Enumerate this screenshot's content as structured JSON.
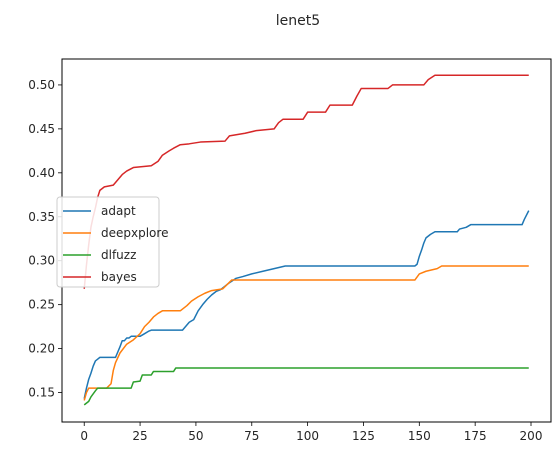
{
  "chart_data": {
    "type": "line",
    "title": "lenet5",
    "xlabel": "",
    "ylabel": "",
    "xlim": [
      -9.95,
      208.95
    ],
    "ylim": [
      0.1165,
      0.5295
    ],
    "xticks": [
      0,
      25,
      50,
      75,
      100,
      125,
      150,
      175,
      200
    ],
    "yticks": [
      0.15,
      0.2,
      0.25,
      0.3,
      0.35,
      0.4,
      0.45,
      0.5
    ],
    "grid": false,
    "legend_position": "center-left",
    "series": [
      {
        "name": "adapt",
        "color": "#1f77b4",
        "points": [
          [
            0,
            0.143
          ],
          [
            1,
            0.155
          ],
          [
            2,
            0.165
          ],
          [
            3,
            0.172
          ],
          [
            4,
            0.18
          ],
          [
            5,
            0.186
          ],
          [
            6,
            0.188
          ],
          [
            7,
            0.19
          ],
          [
            14,
            0.19
          ],
          [
            15,
            0.196
          ],
          [
            16,
            0.202
          ],
          [
            17,
            0.209
          ],
          [
            18,
            0.209
          ],
          [
            19,
            0.212
          ],
          [
            20,
            0.212
          ],
          [
            21,
            0.214
          ],
          [
            24,
            0.214
          ],
          [
            25,
            0.214
          ],
          [
            27,
            0.217
          ],
          [
            29,
            0.22
          ],
          [
            30,
            0.221
          ],
          [
            44,
            0.221
          ],
          [
            45,
            0.224
          ],
          [
            47,
            0.23
          ],
          [
            49,
            0.233
          ],
          [
            51,
            0.243
          ],
          [
            53,
            0.25
          ],
          [
            55,
            0.256
          ],
          [
            57,
            0.261
          ],
          [
            59,
            0.265
          ],
          [
            61,
            0.267
          ],
          [
            63,
            0.271
          ],
          [
            65,
            0.275
          ],
          [
            68,
            0.28
          ],
          [
            71,
            0.282
          ],
          [
            75,
            0.285
          ],
          [
            80,
            0.288
          ],
          [
            85,
            0.291
          ],
          [
            90,
            0.294
          ],
          [
            148,
            0.294
          ],
          [
            149,
            0.296
          ],
          [
            150,
            0.305
          ],
          [
            151,
            0.312
          ],
          [
            152,
            0.32
          ],
          [
            153,
            0.326
          ],
          [
            155,
            0.33
          ],
          [
            157,
            0.333
          ],
          [
            167,
            0.333
          ],
          [
            168,
            0.336
          ],
          [
            171,
            0.338
          ],
          [
            173,
            0.341
          ],
          [
            196,
            0.341
          ],
          [
            197,
            0.347
          ],
          [
            199,
            0.357
          ]
        ]
      },
      {
        "name": "deepxplore",
        "color": "#ff7f0e",
        "points": [
          [
            0,
            0.141
          ],
          [
            1,
            0.15
          ],
          [
            2,
            0.155
          ],
          [
            10,
            0.155
          ],
          [
            12,
            0.16
          ],
          [
            13,
            0.175
          ],
          [
            14,
            0.184
          ],
          [
            16,
            0.195
          ],
          [
            19,
            0.205
          ],
          [
            22,
            0.21
          ],
          [
            25,
            0.217
          ],
          [
            27,
            0.225
          ],
          [
            29,
            0.23
          ],
          [
            31,
            0.236
          ],
          [
            33,
            0.24
          ],
          [
            35,
            0.243
          ],
          [
            43,
            0.243
          ],
          [
            46,
            0.249
          ],
          [
            48,
            0.254
          ],
          [
            51,
            0.259
          ],
          [
            54,
            0.263
          ],
          [
            57,
            0.266
          ],
          [
            62,
            0.268
          ],
          [
            64,
            0.273
          ],
          [
            66,
            0.278
          ],
          [
            148,
            0.278
          ],
          [
            150,
            0.285
          ],
          [
            153,
            0.288
          ],
          [
            158,
            0.291
          ],
          [
            160,
            0.294
          ],
          [
            199,
            0.294
          ]
        ]
      },
      {
        "name": "dlfuzz",
        "color": "#2ca02c",
        "points": [
          [
            0,
            0.136
          ],
          [
            2,
            0.14
          ],
          [
            3,
            0.145
          ],
          [
            5,
            0.152
          ],
          [
            6,
            0.155
          ],
          [
            21,
            0.155
          ],
          [
            22,
            0.162
          ],
          [
            25,
            0.163
          ],
          [
            26,
            0.17
          ],
          [
            30,
            0.17
          ],
          [
            31,
            0.174
          ],
          [
            40,
            0.174
          ],
          [
            41,
            0.178
          ],
          [
            199,
            0.178
          ]
        ]
      },
      {
        "name": "bayes",
        "color": "#d62728",
        "points": [
          [
            0,
            0.268
          ],
          [
            1,
            0.295
          ],
          [
            2,
            0.318
          ],
          [
            3,
            0.338
          ],
          [
            4,
            0.35
          ],
          [
            5,
            0.36
          ],
          [
            6,
            0.372
          ],
          [
            7,
            0.38
          ],
          [
            9,
            0.384
          ],
          [
            13,
            0.386
          ],
          [
            15,
            0.392
          ],
          [
            17,
            0.398
          ],
          [
            19,
            0.402
          ],
          [
            22,
            0.406
          ],
          [
            30,
            0.408
          ],
          [
            33,
            0.413
          ],
          [
            35,
            0.42
          ],
          [
            38,
            0.425
          ],
          [
            40,
            0.428
          ],
          [
            43,
            0.432
          ],
          [
            47,
            0.433
          ],
          [
            52,
            0.435
          ],
          [
            63,
            0.436
          ],
          [
            65,
            0.442
          ],
          [
            72,
            0.445
          ],
          [
            77,
            0.448
          ],
          [
            85,
            0.45
          ],
          [
            87,
            0.457
          ],
          [
            89,
            0.461
          ],
          [
            98,
            0.461
          ],
          [
            100,
            0.469
          ],
          [
            108,
            0.469
          ],
          [
            110,
            0.477
          ],
          [
            120,
            0.477
          ],
          [
            122,
            0.487
          ],
          [
            124,
            0.496
          ],
          [
            136,
            0.496
          ],
          [
            138,
            0.5
          ],
          [
            152,
            0.5
          ],
          [
            154,
            0.506
          ],
          [
            157,
            0.511
          ],
          [
            199,
            0.511
          ]
        ]
      }
    ]
  }
}
